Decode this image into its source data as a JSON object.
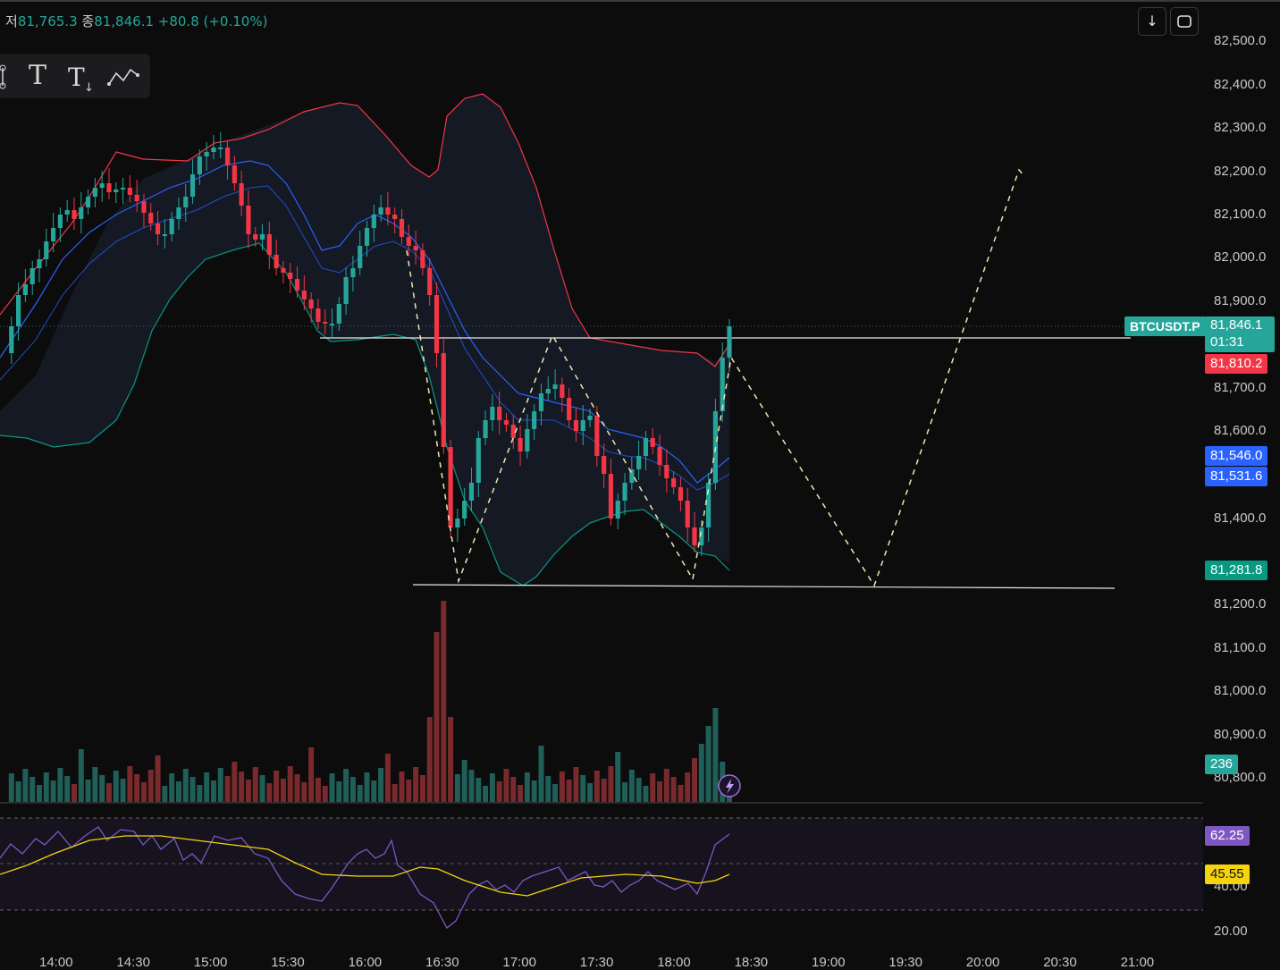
{
  "header": {
    "low_label": "저",
    "low_value": "81,765.3",
    "close_label": "종",
    "close_value": "81,846.1",
    "change": "+80.8 (+0.10%)"
  },
  "toolbar": {
    "tools": [
      "text-tool",
      "anchored-text-tool",
      "path-tool"
    ],
    "text_glyph": "T",
    "anchored_glyph": "Tₓ"
  },
  "header_buttons": {
    "download_glyph": "↓",
    "fullscreen_glyph": "❐"
  },
  "symbol": "BTCUSDT.P",
  "last_price": {
    "value": "81,846.1",
    "countdown": "01:31",
    "color": "#26a69a"
  },
  "open_price_tag": {
    "value": "81,810.2",
    "color": "#f23645"
  },
  "ma_tags": [
    {
      "value": "81,546.0",
      "color": "#2962ff"
    },
    {
      "value": "81,531.6",
      "color": "#2962ff"
    }
  ],
  "bb_lower_tag": {
    "value": "81,281.8",
    "color": "#089981"
  },
  "volume_tag": {
    "value": "236",
    "color": "#26a69a"
  },
  "rsi_tag": {
    "value": "62.25",
    "color": "#7e57c2"
  },
  "rsi_ma_tag": {
    "value": "45.55",
    "color": "#f5d40f"
  },
  "y_axis": [
    "82,500.0",
    "82,400.0",
    "82,300.0",
    "82,200.0",
    "82,100.0",
    "82,000.0",
    "81,900.0",
    "81,700.0",
    "81,600.0",
    "81,400.0",
    "81,200.0",
    "81,100.0",
    "81,000.0",
    "80,900.0",
    "80,800.0"
  ],
  "rsi_axis": [
    "40.00",
    "20.00"
  ],
  "x_axis": [
    "14:00",
    "14:30",
    "15:00",
    "15:30",
    "16:00",
    "16:30",
    "17:00",
    "17:30",
    "18:00",
    "18:30",
    "19:00",
    "19:30",
    "20:00",
    "20:30",
    "21:00"
  ],
  "colors": {
    "up": "#26a69a",
    "down": "#f23645",
    "bb_upper": "#f23645",
    "bb_lower": "#089981",
    "ma": "#2962ff",
    "rsi": "#7e57c2",
    "rsi_ma": "#f5d40f",
    "projection": "#f0e6b0"
  }
}
